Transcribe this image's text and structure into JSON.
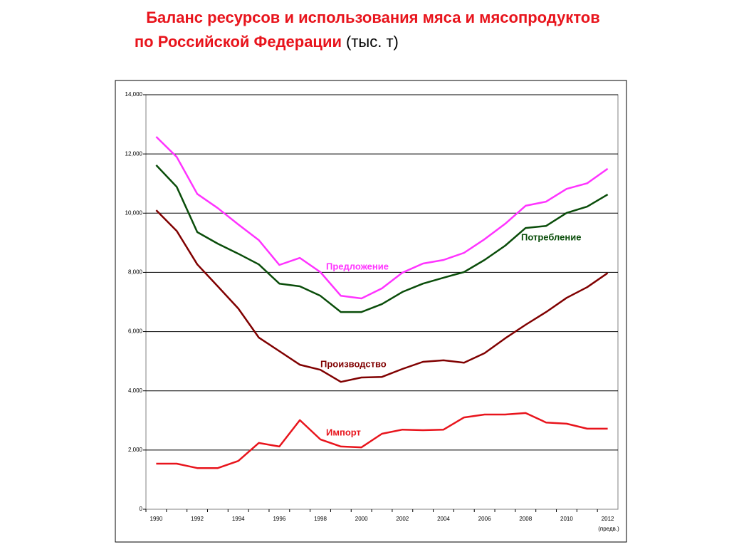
{
  "chart_data": {
    "type": "line",
    "title": "Баланс ресурсов и использования мяса и мясопродуктов",
    "title_line2": "по Российской Федерации",
    "title_unit": "(тыс. т)",
    "categories": [
      "1990",
      null,
      "1992",
      null,
      "1994",
      null,
      "1996",
      null,
      "1998",
      null,
      "2000",
      null,
      "2002",
      null,
      "2004",
      null,
      "2006",
      null,
      "2008",
      null,
      "2010",
      null,
      "2012"
    ],
    "x_note": "(предв.)",
    "ylim": [
      0,
      14000
    ],
    "yticks": [
      0,
      {
        "value": 2000,
        "label": "2,000"
      },
      {
        "value": 4000,
        "label": "4,000"
      },
      {
        "value": 6000,
        "label": "6,000"
      },
      {
        "value": 8000,
        "label": "8,000"
      },
      {
        "value": 10000,
        "label": "10,000"
      },
      {
        "value": 12000,
        "label": "12,000"
      },
      {
        "value": 14000,
        "label": "14,000"
      }
    ],
    "grid": true,
    "series": [
      {
        "name": "Предложение",
        "color": "#ff33ff",
        "values": [
          12580,
          11900,
          10650,
          10170,
          9620,
          9090,
          8250,
          8490,
          8010,
          7210,
          7120,
          7460,
          7990,
          8300,
          8420,
          8660,
          9120,
          9640,
          10250,
          10390,
          10820,
          11010,
          11500
        ]
      },
      {
        "name": "Потребление",
        "color": "#0a4d0a",
        "values": [
          11620,
          10890,
          9360,
          8970,
          8630,
          8270,
          7620,
          7530,
          7210,
          6660,
          6660,
          6930,
          7340,
          7620,
          7820,
          8010,
          8420,
          8900,
          9500,
          9570,
          10010,
          10220,
          10630
        ]
      },
      {
        "name": "Производство",
        "color": "#800000",
        "values": [
          10100,
          9400,
          8270,
          7530,
          6780,
          5800,
          5340,
          4880,
          4710,
          4300,
          4450,
          4470,
          4740,
          4980,
          5030,
          4950,
          5270,
          5770,
          6230,
          6660,
          7140,
          7500,
          7980
        ]
      },
      {
        "name": "Импорт",
        "color": "#e8141c",
        "values": [
          1540,
          1540,
          1390,
          1390,
          1630,
          2240,
          2120,
          3010,
          2360,
          2120,
          2090,
          2550,
          2690,
          2670,
          2690,
          3100,
          3200,
          3200,
          3250,
          2930,
          2890,
          2720,
          2720
        ]
      }
    ]
  }
}
